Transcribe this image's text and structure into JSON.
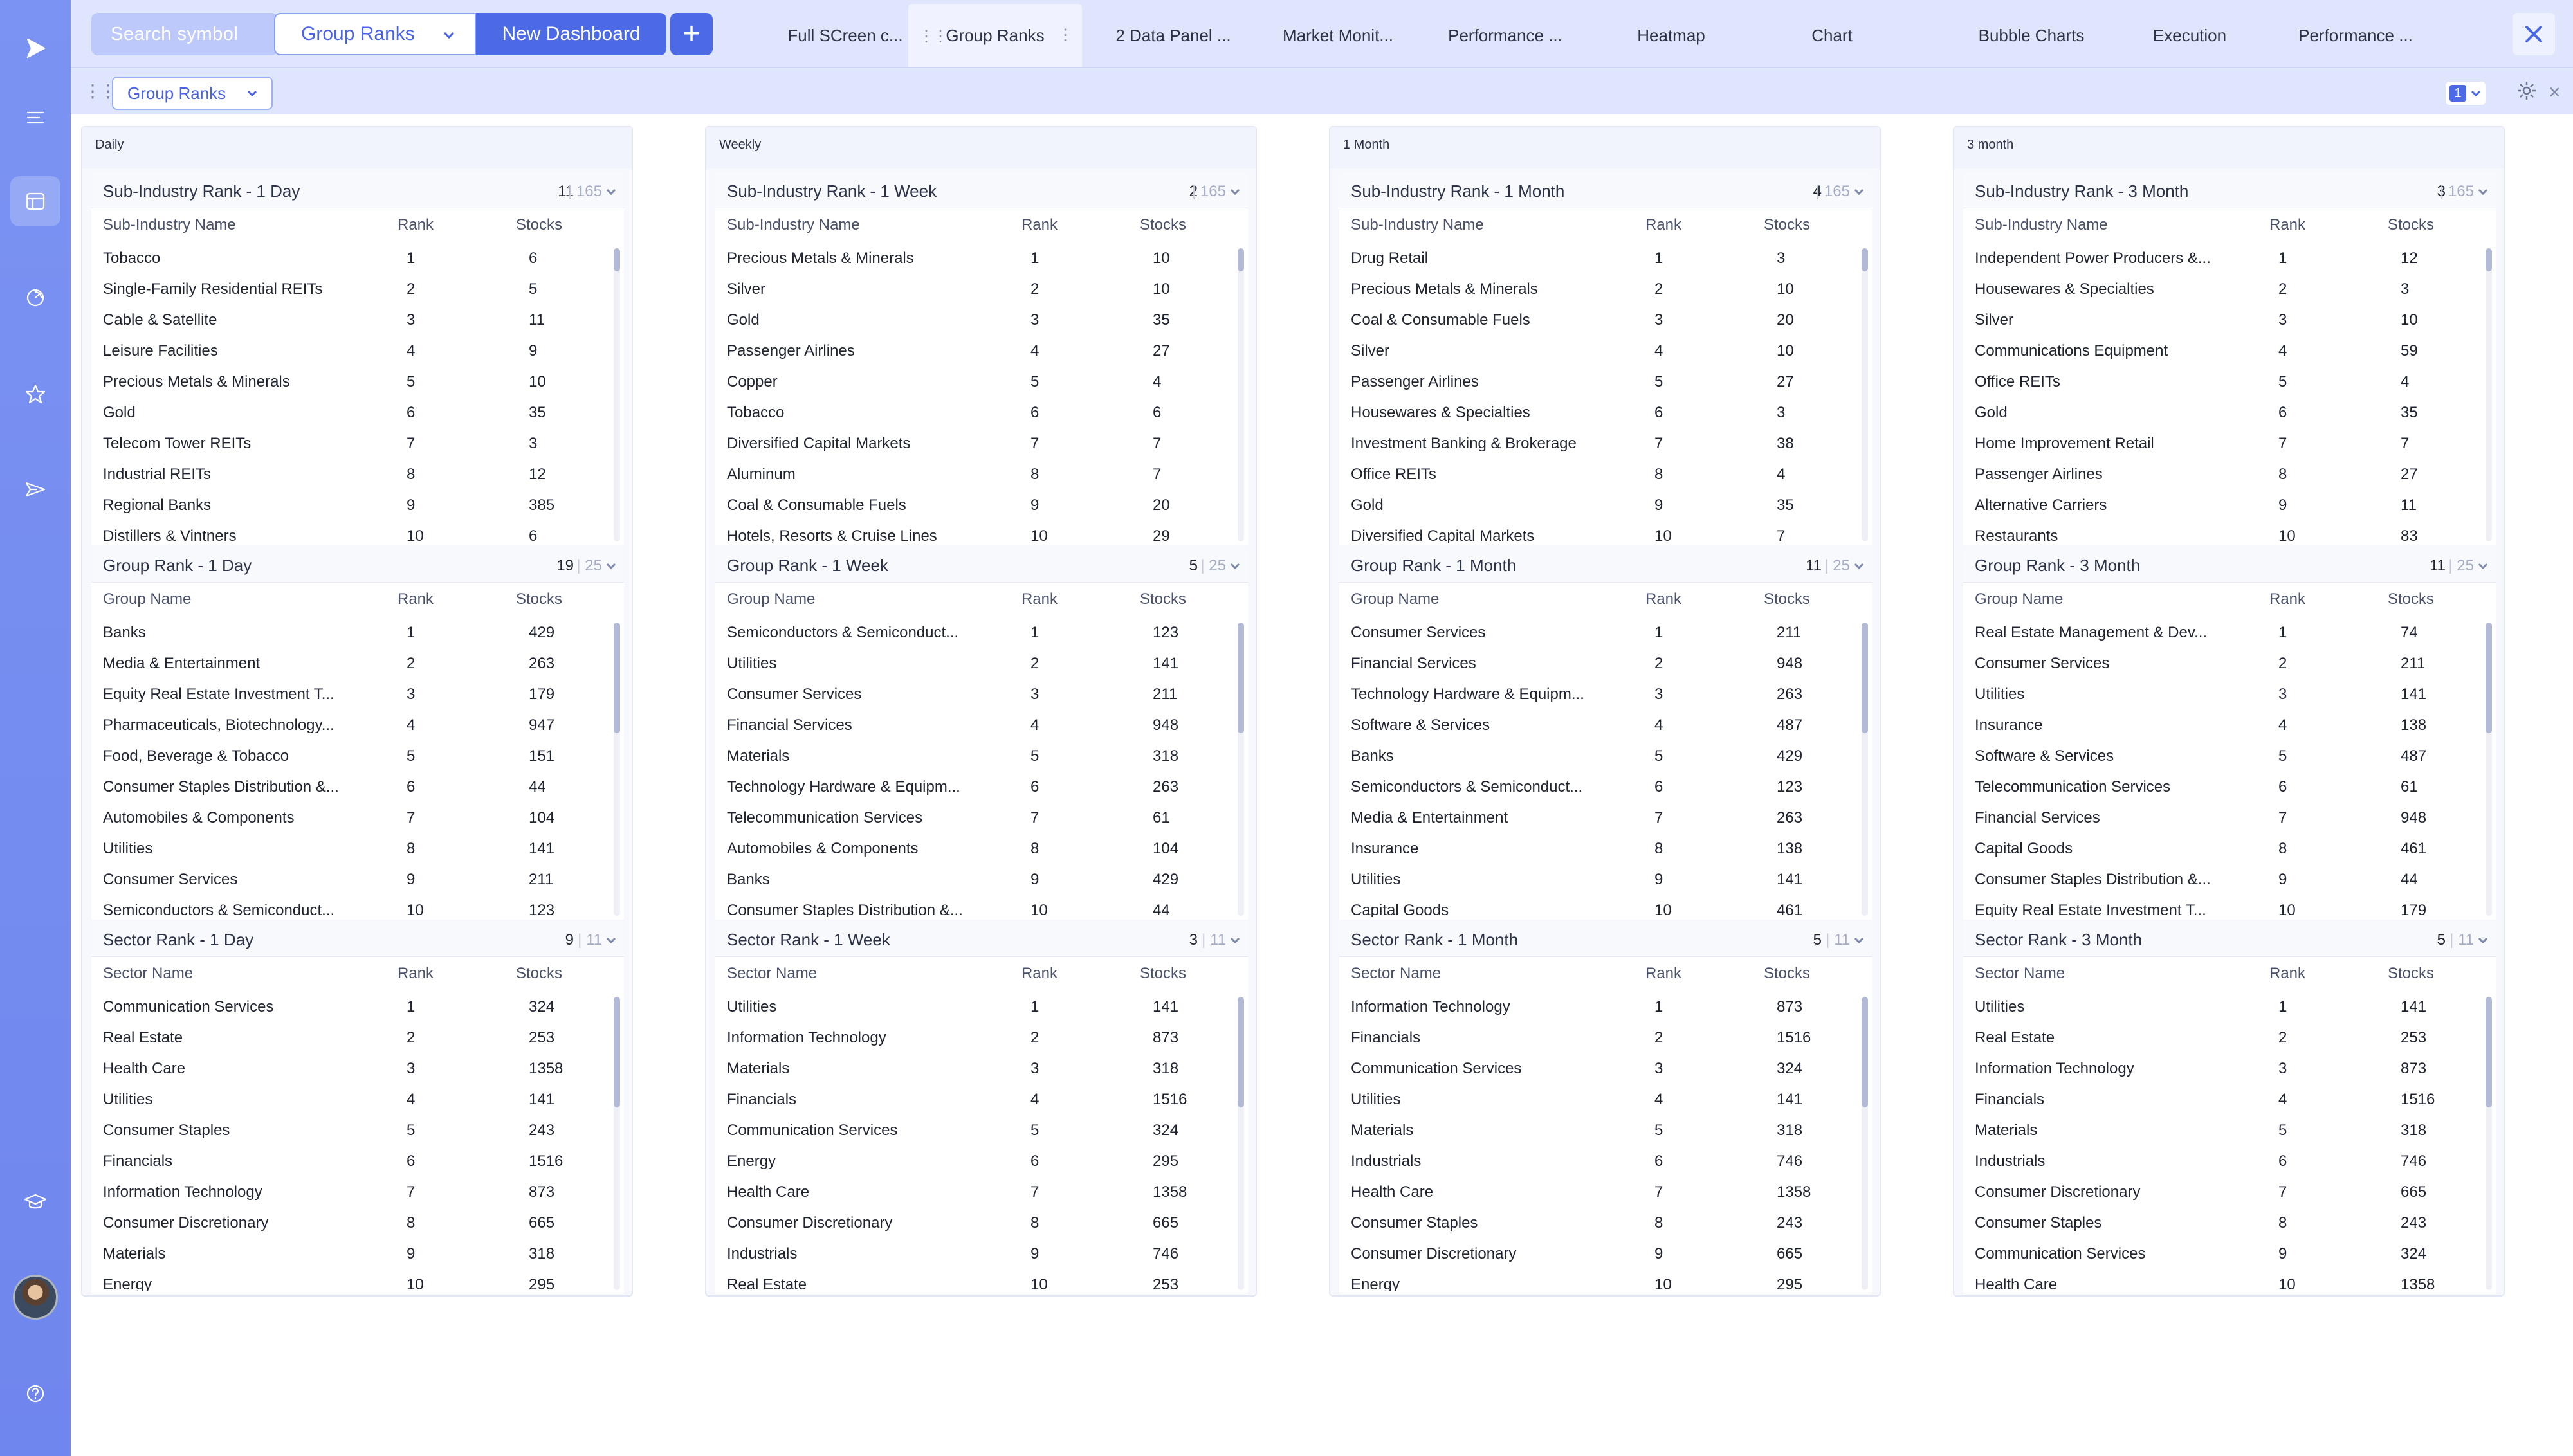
{
  "app": {
    "search_placeholder": "Search symbol",
    "dashboard_select": "Group Ranks",
    "new_dashboard": "New Dashboard",
    "add_symbol": "+",
    "accent": "#4c6ae6",
    "rail_color": "#7b93f2"
  },
  "tabs": [
    "Full SCreen c...",
    "Group Ranks",
    "2 Data Panel ...",
    "Market Monit...",
    "Performance ...",
    "Heatmap",
    "Chart",
    "Bubble Charts",
    "Execution",
    "Performance ..."
  ],
  "active_tab_index": 1,
  "subbar": {
    "layout_select": "Group Ranks",
    "panel_number": "1"
  },
  "rail_icons": [
    "logo-play-icon",
    "menu-lines-icon",
    "dashboard-icon",
    "activity-icon",
    "star-icon",
    "send-icon",
    "graduation-cap-icon",
    "help-icon"
  ],
  "columns": [
    {
      "heading": "Daily",
      "panels": [
        {
          "title": "Sub-Industry Rank - 1 Day",
          "count": "11",
          "total": "165",
          "headers": [
            "Sub-Industry Name",
            "Rank",
            "Stocks"
          ],
          "rows": [
            [
              "Tobacco",
              "1",
              "6"
            ],
            [
              "Single-Family Residential REITs",
              "2",
              "5"
            ],
            [
              "Cable & Satellite",
              "3",
              "11"
            ],
            [
              "Leisure Facilities",
              "4",
              "9"
            ],
            [
              "Precious Metals & Minerals",
              "5",
              "10"
            ],
            [
              "Gold",
              "6",
              "35"
            ],
            [
              "Telecom Tower REITs",
              "7",
              "3"
            ],
            [
              "Industrial REITs",
              "8",
              "12"
            ],
            [
              "Regional Banks",
              "9",
              "385"
            ],
            [
              "Distillers & Vintners",
              "10",
              "6"
            ]
          ]
        },
        {
          "title": "Group Rank - 1 Day",
          "count": "19",
          "total": "25",
          "headers": [
            "Group Name",
            "Rank",
            "Stocks"
          ],
          "rows": [
            [
              "Banks",
              "1",
              "429"
            ],
            [
              "Media & Entertainment",
              "2",
              "263"
            ],
            [
              "Equity Real Estate Investment T...",
              "3",
              "179"
            ],
            [
              "Pharmaceuticals, Biotechnology...",
              "4",
              "947"
            ],
            [
              "Food, Beverage & Tobacco",
              "5",
              "151"
            ],
            [
              "Consumer Staples Distribution &...",
              "6",
              "44"
            ],
            [
              "Automobiles & Components",
              "7",
              "104"
            ],
            [
              "Utilities",
              "8",
              "141"
            ],
            [
              "Consumer Services",
              "9",
              "211"
            ],
            [
              "Semiconductors & Semiconduct...",
              "10",
              "123"
            ]
          ]
        },
        {
          "title": "Sector Rank - 1 Day",
          "count": "9",
          "total": "11",
          "headers": [
            "Sector Name",
            "Rank",
            "Stocks"
          ],
          "rows": [
            [
              "Communication Services",
              "1",
              "324"
            ],
            [
              "Real Estate",
              "2",
              "253"
            ],
            [
              "Health Care",
              "3",
              "1358"
            ],
            [
              "Utilities",
              "4",
              "141"
            ],
            [
              "Consumer Staples",
              "5",
              "243"
            ],
            [
              "Financials",
              "6",
              "1516"
            ],
            [
              "Information Technology",
              "7",
              "873"
            ],
            [
              "Consumer Discretionary",
              "8",
              "665"
            ],
            [
              "Materials",
              "9",
              "318"
            ],
            [
              "Energy",
              "10",
              "295"
            ]
          ]
        }
      ]
    },
    {
      "heading": "Weekly",
      "panels": [
        {
          "title": "Sub-Industry Rank - 1 Week",
          "count": "2",
          "total": "165",
          "headers": [
            "Sub-Industry Name",
            "Rank",
            "Stocks"
          ],
          "rows": [
            [
              "Precious Metals & Minerals",
              "1",
              "10"
            ],
            [
              "Silver",
              "2",
              "10"
            ],
            [
              "Gold",
              "3",
              "35"
            ],
            [
              "Passenger Airlines",
              "4",
              "27"
            ],
            [
              "Copper",
              "5",
              "4"
            ],
            [
              "Tobacco",
              "6",
              "6"
            ],
            [
              "Diversified Capital Markets",
              "7",
              "7"
            ],
            [
              "Aluminum",
              "8",
              "7"
            ],
            [
              "Coal & Consumable Fuels",
              "9",
              "20"
            ],
            [
              "Hotels, Resorts & Cruise Lines",
              "10",
              "29"
            ]
          ]
        },
        {
          "title": "Group Rank - 1 Week",
          "count": "5",
          "total": "25",
          "headers": [
            "Group Name",
            "Rank",
            "Stocks"
          ],
          "rows": [
            [
              "Semiconductors & Semiconduct...",
              "1",
              "123"
            ],
            [
              "Utilities",
              "2",
              "141"
            ],
            [
              "Consumer Services",
              "3",
              "211"
            ],
            [
              "Financial Services",
              "4",
              "948"
            ],
            [
              "Materials",
              "5",
              "318"
            ],
            [
              "Technology Hardware & Equipm...",
              "6",
              "263"
            ],
            [
              "Telecommunication Services",
              "7",
              "61"
            ],
            [
              "Automobiles & Components",
              "8",
              "104"
            ],
            [
              "Banks",
              "9",
              "429"
            ],
            [
              "Consumer Staples Distribution &...",
              "10",
              "44"
            ]
          ]
        },
        {
          "title": "Sector Rank - 1 Week",
          "count": "3",
          "total": "11",
          "headers": [
            "Sector Name",
            "Rank",
            "Stocks"
          ],
          "rows": [
            [
              "Utilities",
              "1",
              "141"
            ],
            [
              "Information Technology",
              "2",
              "873"
            ],
            [
              "Materials",
              "3",
              "318"
            ],
            [
              "Financials",
              "4",
              "1516"
            ],
            [
              "Communication Services",
              "5",
              "324"
            ],
            [
              "Energy",
              "6",
              "295"
            ],
            [
              "Health Care",
              "7",
              "1358"
            ],
            [
              "Consumer Discretionary",
              "8",
              "665"
            ],
            [
              "Industrials",
              "9",
              "746"
            ],
            [
              "Real Estate",
              "10",
              "253"
            ]
          ]
        }
      ]
    },
    {
      "heading": "1 Month",
      "panels": [
        {
          "title": "Sub-Industry Rank - 1 Month",
          "count": "4",
          "total": "165",
          "headers": [
            "Sub-Industry Name",
            "Rank",
            "Stocks"
          ],
          "rows": [
            [
              "Drug Retail",
              "1",
              "3"
            ],
            [
              "Precious Metals & Minerals",
              "2",
              "10"
            ],
            [
              "Coal & Consumable Fuels",
              "3",
              "20"
            ],
            [
              "Silver",
              "4",
              "10"
            ],
            [
              "Passenger Airlines",
              "5",
              "27"
            ],
            [
              "Housewares & Specialties",
              "6",
              "3"
            ],
            [
              "Investment Banking & Brokerage",
              "7",
              "38"
            ],
            [
              "Office REITs",
              "8",
              "4"
            ],
            [
              "Gold",
              "9",
              "35"
            ],
            [
              "Diversified Capital Markets",
              "10",
              "7"
            ]
          ]
        },
        {
          "title": "Group Rank - 1 Month",
          "count": "11",
          "total": "25",
          "headers": [
            "Group Name",
            "Rank",
            "Stocks"
          ],
          "rows": [
            [
              "Consumer Services",
              "1",
              "211"
            ],
            [
              "Financial Services",
              "2",
              "948"
            ],
            [
              "Technology Hardware & Equipm...",
              "3",
              "263"
            ],
            [
              "Software & Services",
              "4",
              "487"
            ],
            [
              "Banks",
              "5",
              "429"
            ],
            [
              "Semiconductors & Semiconduct...",
              "6",
              "123"
            ],
            [
              "Media & Entertainment",
              "7",
              "263"
            ],
            [
              "Insurance",
              "8",
              "138"
            ],
            [
              "Utilities",
              "9",
              "141"
            ],
            [
              "Capital Goods",
              "10",
              "461"
            ]
          ]
        },
        {
          "title": "Sector Rank - 1 Month",
          "count": "5",
          "total": "11",
          "headers": [
            "Sector Name",
            "Rank",
            "Stocks"
          ],
          "rows": [
            [
              "Information Technology",
              "1",
              "873"
            ],
            [
              "Financials",
              "2",
              "1516"
            ],
            [
              "Communication Services",
              "3",
              "324"
            ],
            [
              "Utilities",
              "4",
              "141"
            ],
            [
              "Materials",
              "5",
              "318"
            ],
            [
              "Industrials",
              "6",
              "746"
            ],
            [
              "Health Care",
              "7",
              "1358"
            ],
            [
              "Consumer Staples",
              "8",
              "243"
            ],
            [
              "Consumer Discretionary",
              "9",
              "665"
            ],
            [
              "Energy",
              "10",
              "295"
            ]
          ]
        }
      ]
    },
    {
      "heading": "3 month",
      "panels": [
        {
          "title": "Sub-Industry Rank - 3 Month",
          "count": "3",
          "total": "165",
          "headers": [
            "Sub-Industry Name",
            "Rank",
            "Stocks"
          ],
          "rows": [
            [
              "Independent Power Producers &...",
              "1",
              "12"
            ],
            [
              "Housewares & Specialties",
              "2",
              "3"
            ],
            [
              "Silver",
              "3",
              "10"
            ],
            [
              "Communications Equipment",
              "4",
              "59"
            ],
            [
              "Office REITs",
              "5",
              "4"
            ],
            [
              "Gold",
              "6",
              "35"
            ],
            [
              "Home Improvement Retail",
              "7",
              "7"
            ],
            [
              "Passenger Airlines",
              "8",
              "27"
            ],
            [
              "Alternative Carriers",
              "9",
              "11"
            ],
            [
              "Restaurants",
              "10",
              "83"
            ]
          ]
        },
        {
          "title": "Group Rank - 3 Month",
          "count": "11",
          "total": "25",
          "headers": [
            "Group Name",
            "Rank",
            "Stocks"
          ],
          "rows": [
            [
              "Real Estate Management & Dev...",
              "1",
              "74"
            ],
            [
              "Consumer Services",
              "2",
              "211"
            ],
            [
              "Utilities",
              "3",
              "141"
            ],
            [
              "Insurance",
              "4",
              "138"
            ],
            [
              "Software & Services",
              "5",
              "487"
            ],
            [
              "Telecommunication Services",
              "6",
              "61"
            ],
            [
              "Financial Services",
              "7",
              "948"
            ],
            [
              "Capital Goods",
              "8",
              "461"
            ],
            [
              "Consumer Staples Distribution &...",
              "9",
              "44"
            ],
            [
              "Equity Real Estate Investment T...",
              "10",
              "179"
            ]
          ]
        },
        {
          "title": "Sector Rank - 3 Month",
          "count": "5",
          "total": "11",
          "headers": [
            "Sector Name",
            "Rank",
            "Stocks"
          ],
          "rows": [
            [
              "Utilities",
              "1",
              "141"
            ],
            [
              "Real Estate",
              "2",
              "253"
            ],
            [
              "Information Technology",
              "3",
              "873"
            ],
            [
              "Financials",
              "4",
              "1516"
            ],
            [
              "Materials",
              "5",
              "318"
            ],
            [
              "Industrials",
              "6",
              "746"
            ],
            [
              "Consumer Discretionary",
              "7",
              "665"
            ],
            [
              "Consumer Staples",
              "8",
              "243"
            ],
            [
              "Communication Services",
              "9",
              "324"
            ],
            [
              "Health Care",
              "10",
              "1358"
            ]
          ]
        }
      ]
    }
  ]
}
